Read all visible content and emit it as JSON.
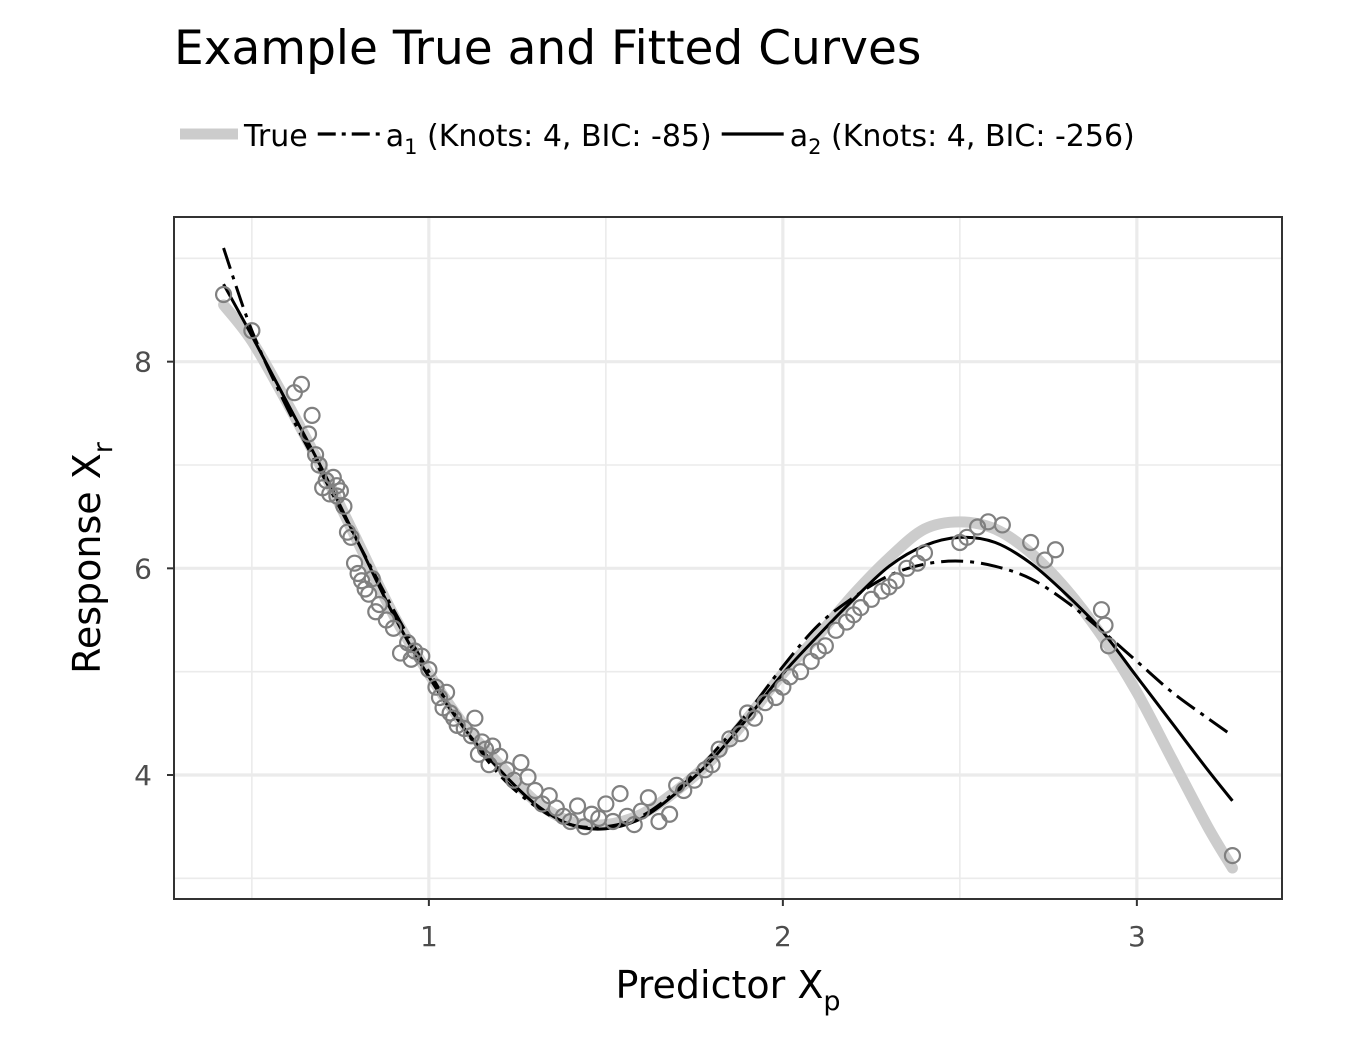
{
  "chart_data": {
    "type": "scatter",
    "title": "Example True and Fitted Curves",
    "xlabel": {
      "main": "Predictor X",
      "sub": "p"
    },
    "ylabel": {
      "main": "Response X",
      "sub": "r"
    },
    "xlim": [
      0.28,
      3.41
    ],
    "ylim": [
      2.8,
      9.4
    ],
    "x_ticks": [
      1,
      2,
      3
    ],
    "y_ticks": [
      4,
      6,
      8
    ],
    "x_minor": [
      0.5,
      1.5,
      2.5,
      3.0
    ],
    "y_minor": [
      3,
      5,
      7,
      9
    ],
    "grid": true,
    "legend_position": "top",
    "colors": {
      "true": "#cccccc",
      "points": "#808080",
      "fit": "#000000",
      "grid": "#ebebeb",
      "panel_border": "#333333"
    },
    "legend": [
      {
        "key": "true",
        "main": "True",
        "sub": "",
        "tail": "",
        "style": "thick-gray"
      },
      {
        "key": "a1",
        "main": "a",
        "sub": "1",
        "tail": " (Knots: 4, BIC: -85)",
        "style": "dotdash"
      },
      {
        "key": "a2",
        "main": "a",
        "sub": "2",
        "tail": " (Knots: 4, BIC: -256)",
        "style": "solid"
      }
    ],
    "series": [
      {
        "name": "True",
        "kind": "line",
        "x": [
          0.42,
          0.5,
          0.6,
          0.7,
          0.8,
          0.9,
          1.0,
          1.1,
          1.2,
          1.3,
          1.4,
          1.5,
          1.6,
          1.7,
          1.8,
          1.9,
          2.0,
          2.1,
          2.2,
          2.3,
          2.4,
          2.5,
          2.6,
          2.7,
          2.8,
          2.9,
          3.0,
          3.1,
          3.2,
          3.27
        ],
        "y": [
          8.55,
          8.2,
          7.6,
          6.95,
          6.25,
          5.55,
          4.98,
          4.48,
          4.1,
          3.75,
          3.55,
          3.52,
          3.62,
          3.85,
          4.15,
          4.55,
          4.98,
          5.35,
          5.75,
          6.1,
          6.38,
          6.45,
          6.38,
          6.15,
          5.8,
          5.35,
          4.8,
          4.15,
          3.5,
          3.1
        ]
      },
      {
        "name": "a1",
        "kind": "line",
        "x": [
          0.42,
          0.5,
          0.6,
          0.7,
          0.8,
          0.9,
          1.0,
          1.1,
          1.2,
          1.3,
          1.4,
          1.5,
          1.6,
          1.7,
          1.8,
          1.9,
          2.0,
          2.1,
          2.2,
          2.3,
          2.4,
          2.5,
          2.6,
          2.7,
          2.8,
          2.9,
          3.0,
          3.1,
          3.2,
          3.27
        ],
        "y": [
          9.1,
          8.3,
          7.55,
          6.9,
          6.25,
          5.6,
          5.0,
          4.45,
          4.0,
          3.7,
          3.52,
          3.5,
          3.6,
          3.85,
          4.2,
          4.6,
          5.05,
          5.45,
          5.72,
          5.93,
          6.04,
          6.07,
          6.02,
          5.9,
          5.68,
          5.4,
          5.1,
          4.8,
          4.55,
          4.38
        ]
      },
      {
        "name": "a2",
        "kind": "line",
        "x": [
          0.42,
          0.5,
          0.6,
          0.7,
          0.8,
          0.9,
          1.0,
          1.1,
          1.2,
          1.3,
          1.4,
          1.5,
          1.6,
          1.7,
          1.8,
          1.9,
          2.0,
          2.1,
          2.2,
          2.3,
          2.4,
          2.5,
          2.6,
          2.7,
          2.8,
          2.9,
          3.0,
          3.1,
          3.2,
          3.27
        ],
        "y": [
          8.75,
          8.25,
          7.6,
          6.95,
          6.25,
          5.55,
          4.95,
          4.45,
          4.05,
          3.72,
          3.52,
          3.48,
          3.58,
          3.83,
          4.15,
          4.55,
          4.98,
          5.35,
          5.7,
          6.02,
          6.22,
          6.3,
          6.25,
          6.05,
          5.75,
          5.4,
          4.95,
          4.5,
          4.05,
          3.75
        ]
      },
      {
        "name": "Observed",
        "kind": "points",
        "x": [
          0.42,
          0.5,
          0.62,
          0.64,
          0.66,
          0.67,
          0.68,
          0.69,
          0.7,
          0.71,
          0.72,
          0.73,
          0.74,
          0.74,
          0.75,
          0.76,
          0.77,
          0.78,
          0.79,
          0.8,
          0.81,
          0.82,
          0.83,
          0.84,
          0.85,
          0.86,
          0.88,
          0.9,
          0.92,
          0.94,
          0.95,
          0.96,
          0.98,
          1.0,
          1.02,
          1.03,
          1.04,
          1.05,
          1.06,
          1.07,
          1.08,
          1.1,
          1.12,
          1.13,
          1.14,
          1.15,
          1.16,
          1.17,
          1.18,
          1.2,
          1.22,
          1.24,
          1.26,
          1.28,
          1.3,
          1.32,
          1.34,
          1.36,
          1.38,
          1.4,
          1.42,
          1.44,
          1.46,
          1.48,
          1.5,
          1.52,
          1.54,
          1.56,
          1.58,
          1.6,
          1.62,
          1.65,
          1.68,
          1.7,
          1.72,
          1.75,
          1.78,
          1.8,
          1.82,
          1.85,
          1.88,
          1.9,
          1.92,
          1.95,
          1.98,
          2.0,
          2.02,
          2.05,
          2.08,
          2.1,
          2.12,
          2.15,
          2.18,
          2.2,
          2.22,
          2.25,
          2.28,
          2.3,
          2.32,
          2.35,
          2.38,
          2.4,
          2.5,
          2.52,
          2.55,
          2.58,
          2.62,
          2.7,
          2.74,
          2.77,
          2.9,
          2.91,
          2.92,
          3.27
        ],
        "y": [
          8.65,
          8.3,
          7.7,
          7.78,
          7.3,
          7.48,
          7.1,
          7.0,
          6.78,
          6.85,
          6.72,
          6.88,
          6.8,
          6.7,
          6.75,
          6.6,
          6.35,
          6.3,
          6.05,
          5.95,
          5.88,
          5.8,
          5.75,
          5.9,
          5.58,
          5.65,
          5.5,
          5.42,
          5.18,
          5.28,
          5.12,
          5.2,
          5.15,
          5.02,
          4.85,
          4.75,
          4.65,
          4.8,
          4.6,
          4.55,
          4.48,
          4.45,
          4.38,
          4.55,
          4.2,
          4.32,
          4.25,
          4.1,
          4.28,
          4.18,
          4.05,
          3.95,
          4.12,
          3.98,
          3.85,
          3.72,
          3.8,
          3.68,
          3.6,
          3.55,
          3.7,
          3.5,
          3.62,
          3.58,
          3.72,
          3.55,
          3.82,
          3.6,
          3.52,
          3.65,
          3.78,
          3.55,
          3.62,
          3.9,
          3.85,
          3.95,
          4.05,
          4.1,
          4.25,
          4.35,
          4.4,
          4.6,
          4.55,
          4.7,
          4.75,
          4.85,
          4.95,
          5.0,
          5.1,
          5.2,
          5.25,
          5.4,
          5.48,
          5.55,
          5.62,
          5.7,
          5.78,
          5.82,
          5.88,
          6.0,
          6.05,
          6.15,
          6.25,
          6.3,
          6.4,
          6.45,
          6.42,
          6.25,
          6.08,
          6.18,
          5.6,
          5.45,
          5.25,
          3.22
        ]
      }
    ]
  }
}
